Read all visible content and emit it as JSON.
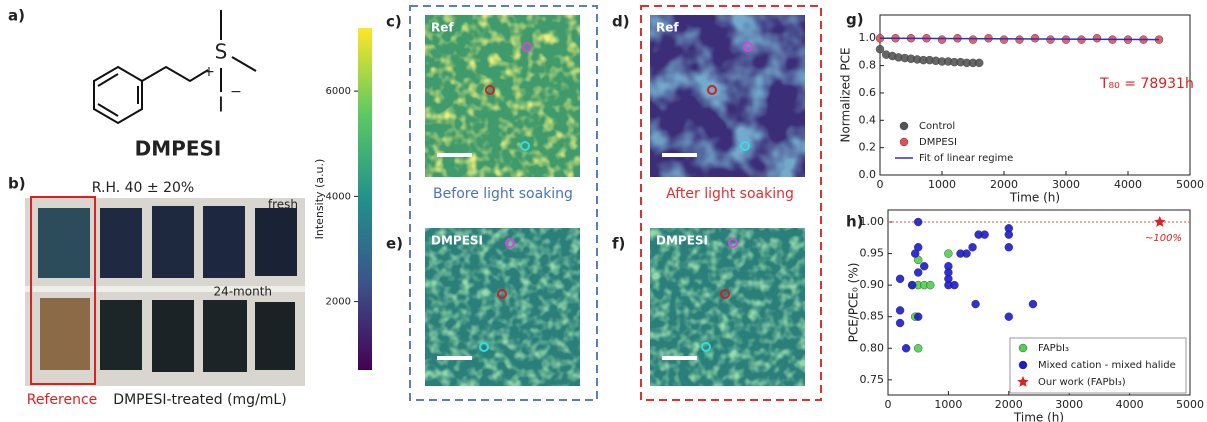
{
  "panels": {
    "labels": [
      "a)",
      "b)",
      "c)",
      "d)",
      "e)",
      "f)",
      "g)",
      "h)"
    ],
    "structure": {
      "sulfur": "S",
      "sulfur_charge": "+",
      "iodide": "I",
      "iodide_charge": "−",
      "name": "DMPESI"
    },
    "photo": {
      "condition": "R.H. 40 ± 20%",
      "top_row": "fresh",
      "bottom_row": "24-month",
      "reference": "Reference",
      "treated": "DMPESI-treated (mg/mL)"
    },
    "maps": {
      "c": "Ref",
      "d": "Ref",
      "e": "DMPESI",
      "f": "DMPESI",
      "before": "Before light soaking",
      "after": "After light soaking"
    },
    "colorbar": {
      "label": "Intensity (a.u.)",
      "lim": [
        700,
        7200
      ],
      "ticks": [
        2000,
        4000,
        6000
      ]
    }
  },
  "chart_data": [
    {
      "type": "scatter",
      "xlabel": "Time (h)",
      "ylabel": "Normalized PCE",
      "annotation": "T₈₀ = 78931h",
      "xlim": [
        0,
        5000
      ],
      "ylim": [
        0,
        1.17
      ],
      "xticks": [
        0,
        1000,
        2000,
        3000,
        4000,
        5000
      ],
      "yticks": [
        {
          "value": 0,
          "label": "0.0"
        },
        {
          "value": 0.2,
          "label": "0.2"
        },
        {
          "value": 0.4,
          "label": "0.4"
        },
        {
          "value": 0.6,
          "label": "0.6"
        },
        {
          "value": 0.8,
          "label": "0.8"
        },
        {
          "value": 1,
          "label": "1.0"
        }
      ],
      "legend": "lower left",
      "series": [
        {
          "name": "Control",
          "color": "#555555",
          "marker": "circle",
          "x": [
            0,
            100,
            200,
            300,
            400,
            500,
            600,
            700,
            800,
            900,
            1000,
            1100,
            1200,
            1300,
            1400,
            1500,
            1600
          ],
          "values": [
            0.92,
            0.88,
            0.87,
            0.86,
            0.855,
            0.85,
            0.845,
            0.84,
            0.84,
            0.835,
            0.83,
            0.83,
            0.825,
            0.825,
            0.82,
            0.82,
            0.82
          ]
        },
        {
          "name": "DMPESI",
          "color": "#e0505a",
          "marker": "circle",
          "x": [
            0,
            250,
            500,
            750,
            1000,
            1250,
            1500,
            1750,
            2000,
            2250,
            2500,
            2750,
            3000,
            3250,
            3500,
            3750,
            4000,
            4250,
            4500
          ],
          "values": [
            1.0,
            1.0,
            1.0,
            1.0,
            0.99,
            1.0,
            0.99,
            1.0,
            0.99,
            0.99,
            1.0,
            0.99,
            0.99,
            0.99,
            1.0,
            0.99,
            0.99,
            0.99,
            0.99
          ]
        },
        {
          "name": "Fit of linear regime",
          "color": "#3030c0",
          "marker": "line",
          "x": [
            0,
            4500
          ],
          "values": [
            1.0,
            0.99
          ]
        }
      ]
    },
    {
      "type": "scatter",
      "xlabel": "Time (h)",
      "ylabel": "PCE/PCE₀ (%)",
      "annotation": "~100%",
      "xlim": [
        0,
        5000
      ],
      "ylim": [
        0.726,
        1.019
      ],
      "xticks": [
        0,
        1000,
        2000,
        3000,
        4000,
        5000
      ],
      "yticks": [
        {
          "value": 0.75,
          "label": "0.75"
        },
        {
          "value": 0.8,
          "label": "0.80"
        },
        {
          "value": 0.85,
          "label": "0.85"
        },
        {
          "value": 0.9,
          "label": "0.90"
        },
        {
          "value": 0.95,
          "label": "0.95"
        },
        {
          "value": 1,
          "label": "1.00"
        }
      ],
      "reference_line": 1.0,
      "legend": "lower right",
      "series": [
        {
          "name": "FAPbI₃",
          "color": "#4cd24c",
          "marker": "circle",
          "x": [
            500,
            500,
            600,
            700,
            450,
            500,
            1000,
            400
          ],
          "values": [
            0.94,
            0.9,
            0.9,
            0.9,
            0.85,
            0.8,
            0.95,
            0.9
          ]
        },
        {
          "name": "Mixed cation - mixed halide",
          "color": "#1a1ad0",
          "marker": "circle",
          "x": [
            200,
            200,
            200,
            300,
            450,
            500,
            500,
            500,
            400,
            500,
            600,
            1000,
            1000,
            1000,
            1000,
            1100,
            1200,
            1300,
            1400,
            1500,
            1600,
            1450,
            2000,
            2000,
            2000,
            2000,
            2400
          ],
          "values": [
            0.91,
            0.86,
            0.84,
            0.8,
            0.95,
            1.0,
            0.96,
            0.92,
            0.9,
            0.85,
            0.93,
            0.93,
            0.92,
            0.91,
            0.9,
            0.9,
            0.95,
            0.95,
            0.96,
            0.98,
            0.98,
            0.87,
            0.99,
            0.98,
            0.96,
            0.85,
            0.87
          ]
        },
        {
          "name": "Our work (FAPbI₃)",
          "color": "#e02020",
          "marker": "star",
          "x": [
            4500
          ],
          "values": [
            1.0
          ]
        }
      ]
    }
  ]
}
